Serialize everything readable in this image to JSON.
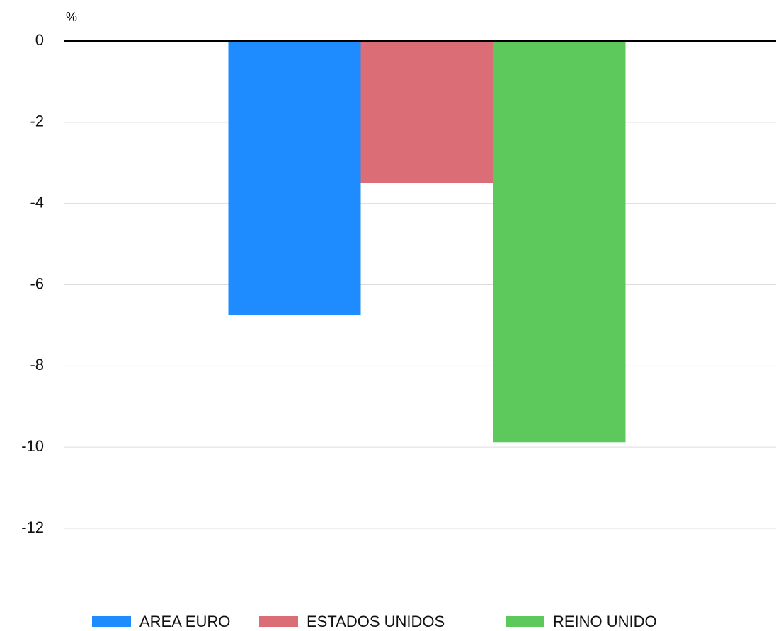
{
  "chart_data": {
    "type": "bar",
    "y_label": "%",
    "categories": [
      null
    ],
    "series": [
      {
        "name": "AREA EURO",
        "color": "#1e8cff",
        "values": [
          -6.75
        ]
      },
      {
        "name": "ESTADOS UNIDOS",
        "color": "#db6d77",
        "values": [
          -3.5
        ]
      },
      {
        "name": "REINO UNIDO",
        "color": "#5dc85c",
        "values": [
          -9.88
        ]
      }
    ],
    "ylim": [
      -12,
      0
    ],
    "yticks": [
      0,
      -2,
      -4,
      -6,
      -8,
      -10,
      -12
    ],
    "grid": true,
    "legend": "bottom"
  }
}
